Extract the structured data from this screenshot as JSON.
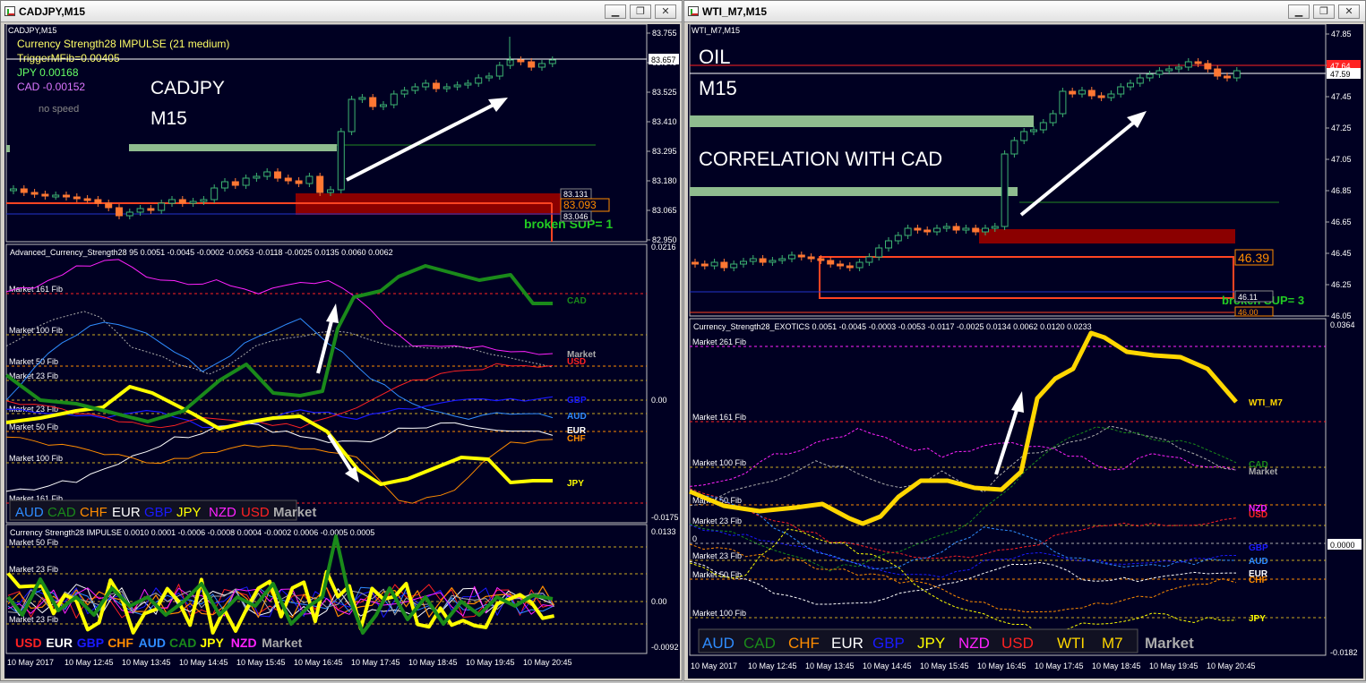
{
  "left": {
    "title": "CADJPY,M15",
    "main": {
      "symbol_tag": "CADJPY,M15",
      "info": [
        "Currency Strength28 IMPULSE (21 medium)",
        "TriggerMFib=0.00405",
        "JPY 0.00168",
        "CAD -0.00152",
        "no speed"
      ],
      "label1": "CADJPY",
      "label2": "M15",
      "broken": "broken SUP= 1",
      "price_ticks": [
        "83.755",
        "83.640",
        "83.525",
        "83.410",
        "83.295",
        "83.180",
        "83.065",
        "82.950"
      ],
      "cur_price": "83.657",
      "box_prices": [
        "83.131",
        "83.093",
        "83.046"
      ]
    },
    "sub1": {
      "header": "Advanced_Currency_Strength28 95 0.0051 -0.0045 -0.0002 -0.0053 -0.0118 -0.0025 0.0135 0.0060 0.0062",
      "fibs": [
        "Market 161 Fib",
        "Market 100 Fib",
        "Market 50 Fib",
        "Market 23 Fib",
        "Market 23 Fib",
        "Market 50 Fib",
        "Market 100 Fib",
        "Market 161 Fib"
      ],
      "right_labels": [
        "CAD",
        "Market",
        "USD",
        "GBP",
        "AUD",
        "EUR",
        "CHF",
        "JPY"
      ],
      "ticks": [
        "0.0216",
        "0.00",
        "-0.0175"
      ],
      "legend": [
        "AUD",
        "CAD",
        "CHF",
        "EUR",
        "GBP",
        "JPY",
        "NZD",
        "USD",
        "Market"
      ]
    },
    "sub2": {
      "header": "Currency Strength28 IMPULSE  0.0010 0.0001 -0.0006 -0.0008 0.0004 -0.0002 0.0006 -0.0005 0.0005",
      "fibs": [
        "Market 50 Fib",
        "Market 23 Fib",
        "Market 23 Fib"
      ],
      "ticks": [
        "0.0133",
        "0.00",
        "-0.0092"
      ],
      "legend": [
        "USD",
        "EUR",
        "GBP",
        "CHF",
        "AUD",
        "CAD",
        "JPY",
        "NZD",
        "Market"
      ]
    },
    "time_labels": [
      "10 May 2017",
      "10 May 12:45",
      "10 May 13:45",
      "10 May 14:45",
      "10 May 15:45",
      "10 May 16:45",
      "10 May 17:45",
      "10 May 18:45",
      "10 May 19:45",
      "10 May 20:45"
    ]
  },
  "right": {
    "title": "WTI_M7,M15",
    "main": {
      "symbol_tag": "WTI_M7,M15",
      "label1": "OIL",
      "label2": "M15",
      "label3": "CORRELATION WITH CAD",
      "broken": "broken SUP= 3",
      "price_ticks": [
        "47.85",
        "47.65",
        "47.45",
        "47.25",
        "47.05",
        "46.85",
        "46.65",
        "46.45",
        "46.25",
        "46.05"
      ],
      "red_price": "47.64",
      "cur_price": "47.59",
      "box_price": "46.39",
      "box_price2": "46.11",
      "box_price3": "46.00"
    },
    "sub": {
      "header": "Currency_Strength28_EXOTICS  0.0051 -0.0045 -0.0003 -0.0053 -0.0117 -0.0025 0.0134 0.0062 0.0120 0.0233",
      "fibs": [
        "Market 261 Fib",
        "Market 161 Fib",
        "Market 100 Fib",
        "Market 50 Fib",
        "Market 23 Fib",
        "0",
        "Market 23 Fib",
        "Market 50 Fib",
        "Market 100 Fib"
      ],
      "right_labels": [
        "WTI_M7",
        "CAD",
        "Market",
        "NZD",
        "USD",
        "GBP",
        "AUD",
        "EUR",
        "CHF",
        "JPY"
      ],
      "ticks": [
        "0.0364",
        "0.0000",
        "-0.0182"
      ],
      "legend": [
        "AUD",
        "CAD",
        "CHF",
        "EUR",
        "GBP",
        "JPY",
        "NZD",
        "USD",
        "WTI",
        "M7",
        "Market"
      ]
    },
    "time_labels": [
      "10 May 2017",
      "10 May 12:45",
      "10 May 13:45",
      "10 May 14:45",
      "10 May 15:45",
      "10 May 16:45",
      "10 May 17:45",
      "10 May 18:45",
      "10 May 19:45",
      "10 May 20:45"
    ]
  },
  "colors": {
    "bg": "#000022",
    "AUD": "#2f8cff",
    "CAD": "#1a8a1a",
    "CHF": "#ff8c00",
    "EUR": "#ffffff",
    "GBP": "#1a1aff",
    "JPY": "#ffff00",
    "NZD": "#ff22ff",
    "USD": "#ff2222",
    "Market": "#9a9a9a",
    "WTI": "#ffd700"
  },
  "window_buttons": {
    "minimize": "▁",
    "restore": "❐",
    "close": "✕"
  }
}
